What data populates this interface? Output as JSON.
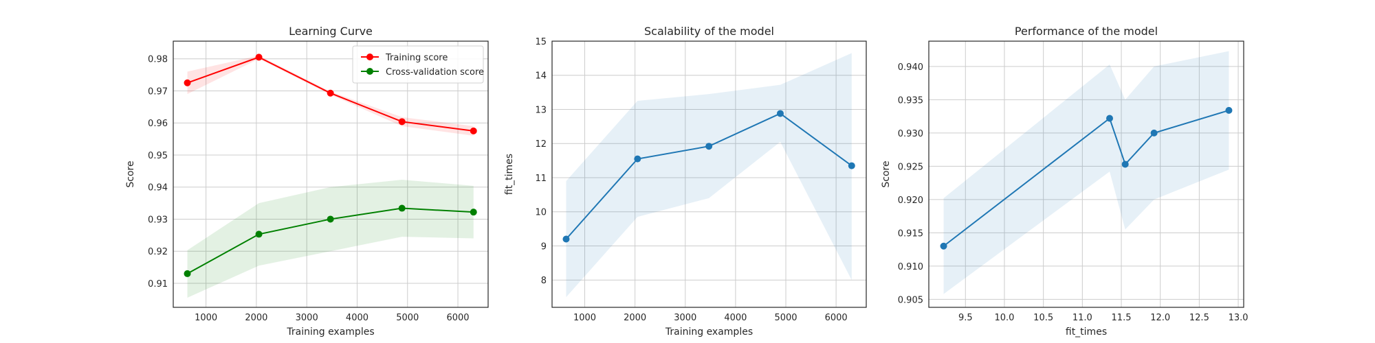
{
  "chart_data": [
    {
      "type": "line",
      "title": "Learning Curve",
      "xlabel": "Training examples",
      "ylabel": "Score",
      "xlim": [
        350,
        6600
      ],
      "ylim": [
        0.9025,
        0.9855
      ],
      "xticks": [
        1000,
        2000,
        3000,
        4000,
        5000,
        6000
      ],
      "yticks": [
        0.91,
        0.92,
        0.93,
        0.94,
        0.95,
        0.96,
        0.97,
        0.98
      ],
      "ytick_format": 2,
      "grid": true,
      "legend_position": "top-right",
      "x": [
        630,
        2050,
        3470,
        4890,
        6310
      ],
      "series": [
        {
          "name": "Training score",
          "color": "#ff0000",
          "values": [
            0.9725,
            0.9805,
            0.9693,
            0.9604,
            0.9575
          ],
          "band_lower": [
            0.969,
            0.98,
            0.9688,
            0.959,
            0.956
          ],
          "band_upper": [
            0.976,
            0.981,
            0.9698,
            0.9618,
            0.959
          ]
        },
        {
          "name": "Cross-validation score",
          "color": "#008000",
          "values": [
            0.913,
            0.9253,
            0.93,
            0.9334,
            0.9322
          ],
          "band_lower": [
            0.9055,
            0.9155,
            0.92,
            0.9245,
            0.924
          ],
          "band_upper": [
            0.9203,
            0.935,
            0.94,
            0.9423,
            0.9404
          ]
        }
      ]
    },
    {
      "type": "line",
      "title": "Scalability of the model",
      "xlabel": "Training examples",
      "ylabel": "fit_times",
      "xlim": [
        350,
        6600
      ],
      "ylim": [
        7.2,
        15.0
      ],
      "xticks": [
        1000,
        2000,
        3000,
        4000,
        5000,
        6000
      ],
      "yticks": [
        8,
        9,
        10,
        11,
        12,
        13,
        14,
        15
      ],
      "ytick_format": 0,
      "grid": true,
      "x": [
        630,
        2050,
        3470,
        4890,
        6310
      ],
      "series": [
        {
          "color": "#1f77b4",
          "values": [
            9.2,
            11.55,
            11.92,
            12.88,
            11.35
          ],
          "band_lower": [
            7.5,
            9.85,
            10.4,
            12.05,
            8.0
          ],
          "band_upper": [
            10.9,
            13.25,
            13.45,
            13.72,
            14.65
          ]
        }
      ]
    },
    {
      "type": "line",
      "title": "Performance of the model",
      "xlabel": "fit_times",
      "ylabel": "Score",
      "xlim": [
        9.03,
        13.07
      ],
      "ylim": [
        0.9038,
        0.9438
      ],
      "xticks": [
        9.5,
        10.0,
        10.5,
        11.0,
        11.5,
        12.0,
        12.5,
        13.0
      ],
      "xtick_format": 1,
      "yticks": [
        0.905,
        0.91,
        0.915,
        0.92,
        0.925,
        0.93,
        0.935,
        0.94
      ],
      "ytick_format": 3,
      "grid": true,
      "x": [
        9.22,
        11.35,
        11.55,
        11.92,
        12.88
      ],
      "series": [
        {
          "color": "#1f77b4",
          "values": [
            0.913,
            0.9322,
            0.9253,
            0.93,
            0.9334
          ],
          "band_lower": [
            0.9058,
            0.9242,
            0.9155,
            0.92,
            0.9245
          ],
          "band_upper": [
            0.9202,
            0.9403,
            0.935,
            0.94,
            0.9423
          ]
        }
      ]
    }
  ]
}
